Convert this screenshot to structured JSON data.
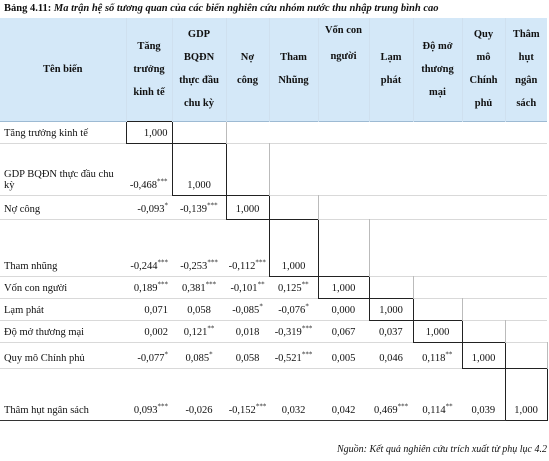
{
  "caption": {
    "number": "Bảng 4.11:",
    "title": "Ma trận hệ số tương quan của các biến nghiên cứu nhóm nước thu nhập trung bình cao"
  },
  "header": {
    "var_col": "Tên biến",
    "cols": [
      "Tăng\ntrưởng\nkinh tế",
      "GDP\nBQĐN\nthực đầu\nchu kỳ",
      "Nợ\ncông",
      "Tham\nNhũng",
      "Vốn con\nngười",
      "Lạm\nphát",
      "Độ mở\nthương\nmại",
      "Quy\nmô\nChính\nphủ",
      "Thâm\nhụt\nngân\nsách"
    ]
  },
  "rows": [
    {
      "label": "Tăng trưởng kinh tế",
      "cells": [
        [
          "1,000",
          ""
        ],
        [
          "",
          ""
        ],
        [
          "",
          ""
        ],
        [
          "",
          ""
        ],
        [
          "",
          ""
        ],
        [
          "",
          ""
        ],
        [
          "",
          ""
        ],
        [
          "",
          ""
        ],
        [
          "",
          ""
        ]
      ]
    },
    {
      "label": "GDP BQĐN thực đầu chu kỳ",
      "cells": [
        [
          "-0,468",
          "***"
        ],
        [
          "1,000",
          ""
        ],
        [
          "",
          ""
        ],
        [
          "",
          ""
        ],
        [
          "",
          ""
        ],
        [
          "",
          ""
        ],
        [
          "",
          ""
        ],
        [
          "",
          ""
        ],
        [
          "",
          ""
        ]
      ]
    },
    {
      "label": "Nợ công",
      "cells": [
        [
          "-0,093",
          "*"
        ],
        [
          "-0,139",
          "***"
        ],
        [
          "1,000",
          ""
        ],
        [
          "",
          ""
        ],
        [
          "",
          ""
        ],
        [
          "",
          ""
        ],
        [
          "",
          ""
        ],
        [
          "",
          ""
        ],
        [
          "",
          ""
        ]
      ]
    },
    {
      "label": "Tham nhũng",
      "cells": [
        [
          "-0,244",
          "***"
        ],
        [
          "-0,253",
          "***"
        ],
        [
          "-0,112",
          "***"
        ],
        [
          "1,000",
          ""
        ],
        [
          "",
          ""
        ],
        [
          "",
          ""
        ],
        [
          "",
          ""
        ],
        [
          "",
          ""
        ],
        [
          "",
          ""
        ]
      ]
    },
    {
      "label": "Vốn con người",
      "cells": [
        [
          "0,189",
          "***"
        ],
        [
          "0,381",
          "***"
        ],
        [
          "-0,101",
          "**"
        ],
        [
          "0,125",
          "**"
        ],
        [
          "1,000",
          ""
        ],
        [
          "",
          ""
        ],
        [
          "",
          ""
        ],
        [
          "",
          ""
        ],
        [
          "",
          ""
        ]
      ]
    },
    {
      "label": "Lạm phát",
      "cells": [
        [
          "0,071",
          ""
        ],
        [
          "0,058",
          ""
        ],
        [
          "-0,085",
          "*"
        ],
        [
          "-0,076",
          "*"
        ],
        [
          "0,000",
          ""
        ],
        [
          "1,000",
          ""
        ],
        [
          "",
          ""
        ],
        [
          "",
          ""
        ],
        [
          "",
          ""
        ]
      ]
    },
    {
      "label": "Độ mở thương mại",
      "cells": [
        [
          "0,002",
          ""
        ],
        [
          "0,121",
          "**"
        ],
        [
          "0,018",
          ""
        ],
        [
          "-0,319",
          "***"
        ],
        [
          "0,067",
          ""
        ],
        [
          "0,037",
          ""
        ],
        [
          "1,000",
          ""
        ],
        [
          "",
          ""
        ],
        [
          "",
          ""
        ]
      ]
    },
    {
      "label": "Quy mô Chính phủ",
      "cells": [
        [
          "-0,077",
          "*"
        ],
        [
          "0,085",
          "*"
        ],
        [
          "0,058",
          ""
        ],
        [
          "-0,521",
          "***"
        ],
        [
          "0,005",
          ""
        ],
        [
          "0,046",
          ""
        ],
        [
          "0,118",
          "**"
        ],
        [
          "1,000",
          ""
        ],
        [
          "",
          ""
        ]
      ]
    },
    {
      "label": "Thâm hụt ngân sách",
      "cells": [
        [
          "0,093",
          "***"
        ],
        [
          "-0,026",
          ""
        ],
        [
          "-0,152",
          "***"
        ],
        [
          "0,032",
          ""
        ],
        [
          "0,042",
          ""
        ],
        [
          "0,469",
          "***"
        ],
        [
          "0,114",
          "**"
        ],
        [
          "0,039",
          ""
        ],
        [
          "1,000",
          ""
        ]
      ]
    }
  ],
  "source_note": "Nguồn: Kết quả nghiên cứu trích xuất từ phụ lục 4.2"
}
